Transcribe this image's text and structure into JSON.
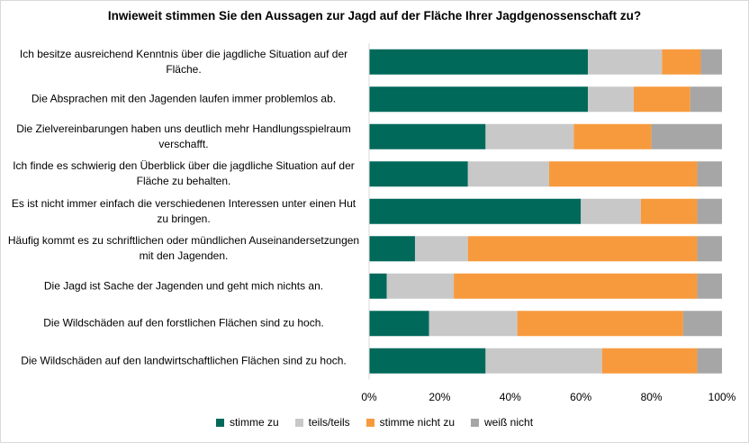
{
  "chart_data": {
    "type": "bar",
    "orientation": "horizontal",
    "stacked": true,
    "title": "Inwieweit stimmen Sie den Aussagen zur Jagd auf der Fläche Ihrer Jagdgenossenschaft zu?",
    "categories": [
      "Ich besitze ausreichend Kenntnis über die jagdliche Situation auf der Fläche.",
      "Die Absprachen mit den Jagenden laufen immer problemlos ab.",
      "Die Zielvereinbarungen haben uns deutlich mehr Handlungsspielraum verschafft.",
      "Ich finde es schwierig den Überblick über die jagdliche Situation auf der Fläche zu behalten.",
      "Es ist nicht immer einfach die verschiedenen Interessen unter einen Hut zu bringen.",
      "Häufig kommt es zu schriftlichen oder mündlichen Auseinandersetzungen mit den Jagenden.",
      "Die Jagd ist Sache der Jagenden und geht mich nichts an.",
      "Die Wildschäden auf den forstlichen Flächen sind zu hoch.",
      "Die Wildschäden auf den landwirtschaftlichen Flächen sind zu hoch."
    ],
    "series": [
      {
        "name": "stimme zu",
        "color": "#00695a",
        "values": [
          62,
          62,
          33,
          28,
          60,
          13,
          5,
          17,
          33
        ]
      },
      {
        "name": "teils/teils",
        "color": "#c8c8c8",
        "values": [
          21,
          13,
          25,
          23,
          17,
          15,
          19,
          25,
          33
        ]
      },
      {
        "name": "stimme nicht zu",
        "color": "#f79a3e",
        "values": [
          11,
          16,
          22,
          42,
          16,
          65,
          69,
          47,
          27
        ]
      },
      {
        "name": "weiß nicht",
        "color": "#a6a6a6",
        "values": [
          6,
          9,
          20,
          7,
          7,
          7,
          7,
          11,
          7
        ]
      }
    ],
    "xlim": [
      0,
      100
    ],
    "xticks": [
      "0%",
      "20%",
      "40%",
      "60%",
      "80%",
      "100%"
    ],
    "grid": false,
    "legend_position": "bottom"
  }
}
